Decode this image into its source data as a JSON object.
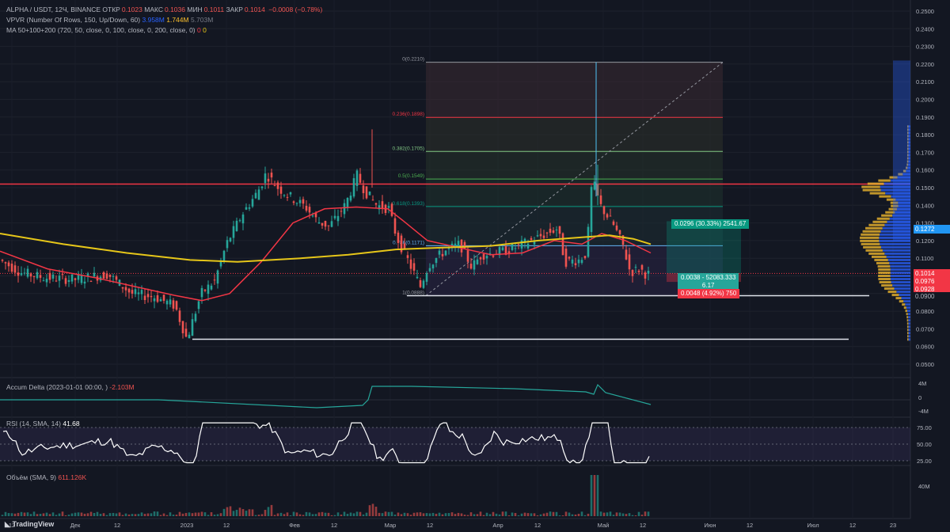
{
  "legend": {
    "pair": "ALPHA / USDT, 12Ч, BINANCE",
    "open_label": "ОТКР",
    "open": "0.1023",
    "high_label": "МАКС",
    "high": "0.1036",
    "low_label": "МИН",
    "low": "0.1011",
    "close_label": "ЗАКР",
    "close": "0.1014",
    "change": "−0.0008 (−0.78%)",
    "vpvr": "VPVR (Number Of Rows, 150, Up/Down, 60)",
    "vpvr_up": "3.958M",
    "vpvr_down": "1.744M",
    "vpvr_total": "5.703M",
    "ma": "MA 50+100+200 (720, 50, close, 0, 100, close, 0, 200, close, 0)",
    "ma_v1": "0",
    "ma_v2": "0"
  },
  "price_axis": [
    "0.2500",
    "0.2400",
    "0.2300",
    "0.2200",
    "0.2100",
    "0.2000",
    "0.1900",
    "0.1800",
    "0.1700",
    "0.1600",
    "0.1500",
    "0.1400",
    "0.1300",
    "0.1200",
    "0.1100",
    "0.1000",
    "0.0900",
    "0.0800",
    "0.0700",
    "0.0600",
    "0.0500"
  ],
  "price_tags": {
    "top": "0.1272",
    "current": "0.1014",
    "mid": "0.0976",
    "low": "0.0928",
    "bottom": "0.0900"
  },
  "fib_levels": [
    {
      "label": "0(0.2210)",
      "price": 0.221,
      "color": "#9598a1"
    },
    {
      "label": "0.236(0.1898)",
      "price": 0.1898,
      "color": "#f23645"
    },
    {
      "label": "0.382(0.1705)",
      "price": 0.1705,
      "color": "#81c784"
    },
    {
      "label": "0.5(0.1549)",
      "price": 0.1549,
      "color": "#4caf50"
    },
    {
      "label": "0.618(0.1393)",
      "price": 0.1393,
      "color": "#089981"
    },
    {
      "label": "0.786(0.1171)",
      "price": 0.1171,
      "color": "#64b5f6"
    },
    {
      "label": "1(0.0888)",
      "price": 0.0888,
      "color": "#9598a1"
    }
  ],
  "position": {
    "target": "0.0296 (30.33%) 2541.67",
    "entry_line1": "0.0038 - 52083.333",
    "entry_line2": "6.17",
    "stop": "0.0048 (4.92%) 750"
  },
  "accum_delta": {
    "label": "Accum Delta (2023-01-01 00:00, )",
    "value": "-2.103M",
    "axis": [
      "4M",
      "0",
      "-4M"
    ]
  },
  "rsi": {
    "label": "RSI (14, SMA, 14)",
    "value": "41.68",
    "axis": [
      "75.00",
      "50.00",
      "25.00"
    ]
  },
  "volume": {
    "label": "Объём (SMA, 9)",
    "value": "611.126K",
    "axis": [
      "40M"
    ]
  },
  "time_axis": [
    "12",
    "Дек",
    "12",
    "2023",
    "12",
    "Фев",
    "12",
    "Мар",
    "12",
    "Апр",
    "12",
    "Май",
    "12",
    "Июн",
    "12",
    "Июл",
    "12",
    "23"
  ],
  "brand": "TradingView",
  "colors": {
    "up": "#26a69a",
    "down": "#ef5350",
    "ma_red": "#f23645",
    "ma_yellow": "#e6c619",
    "bg": "#131722"
  }
}
